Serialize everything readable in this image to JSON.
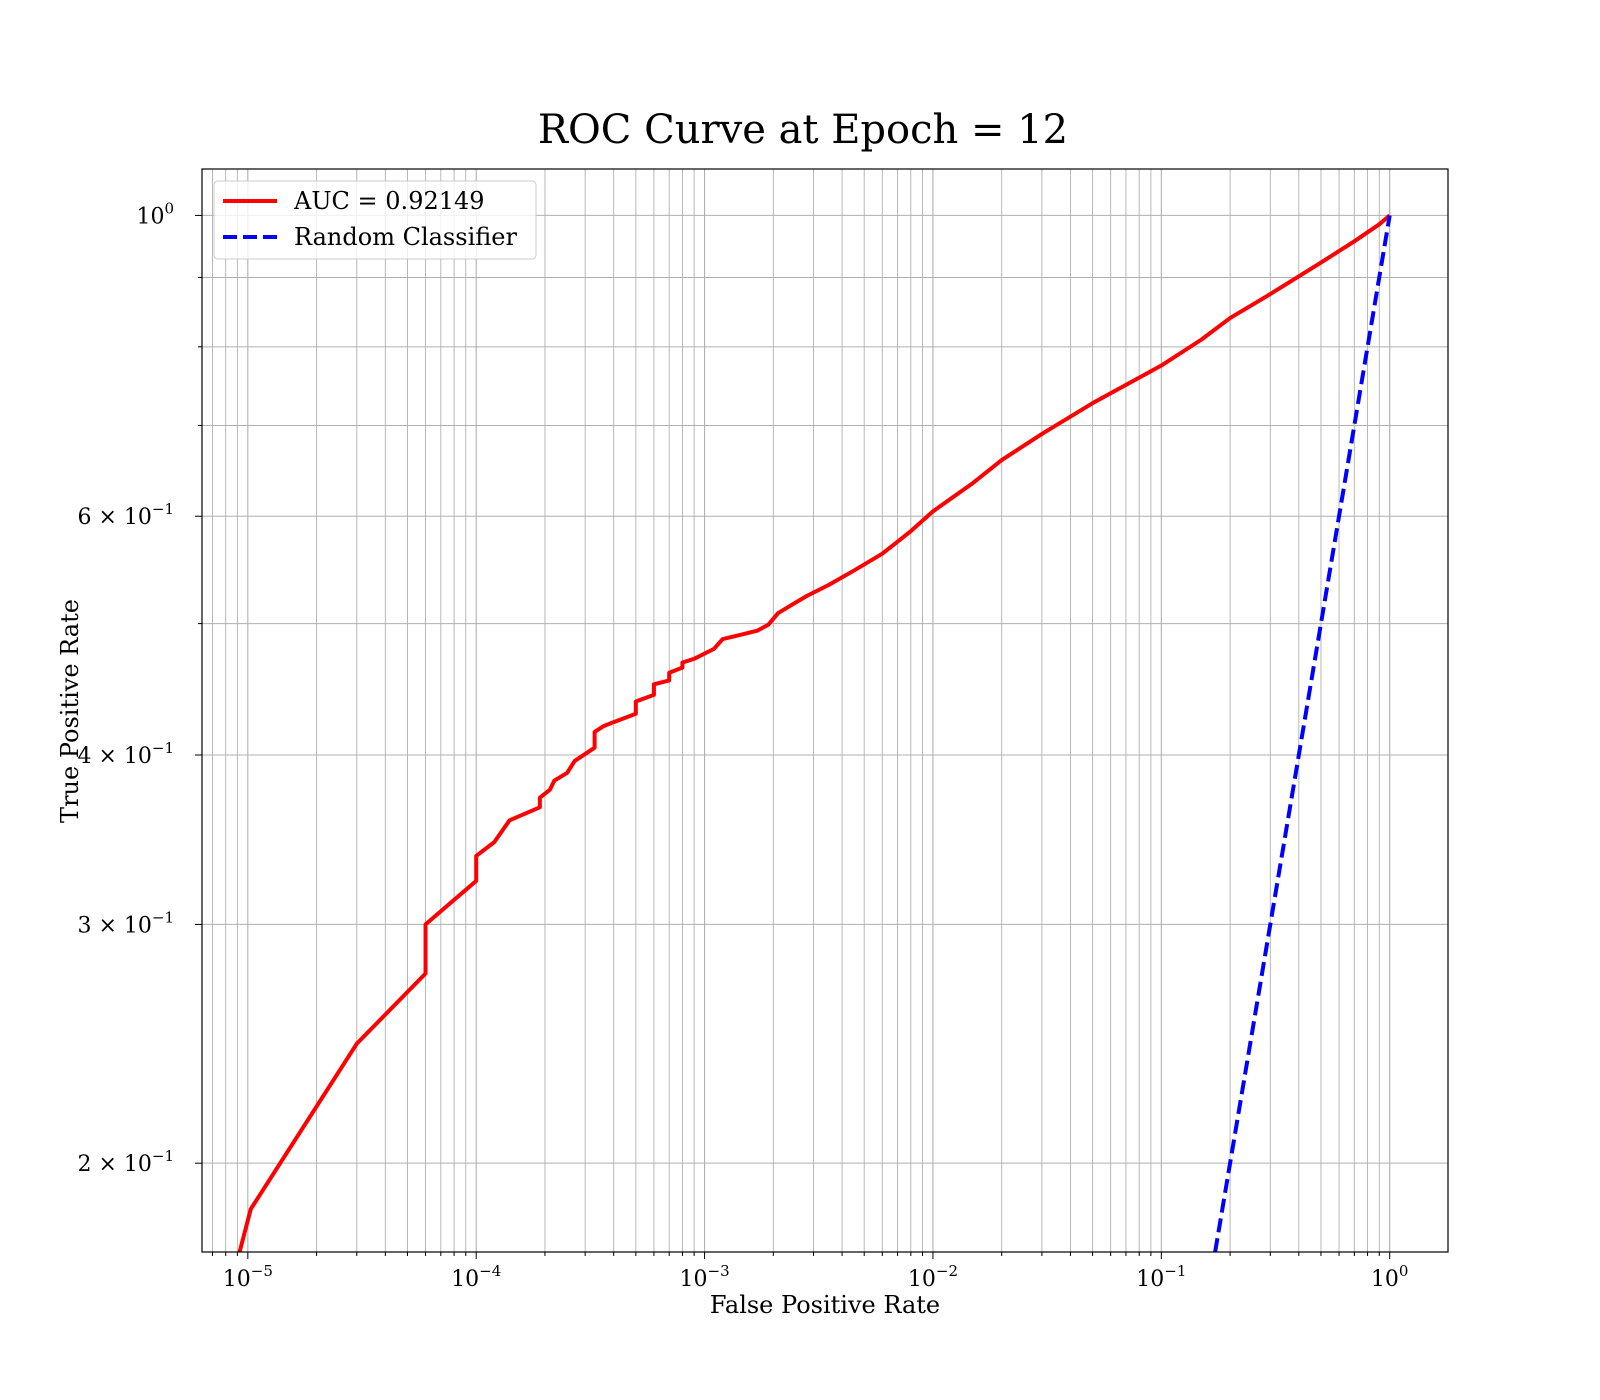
{
  "chart_data": {
    "type": "line",
    "title": "ROC Curve at Epoch = 12",
    "xlabel": "False Positive Rate",
    "ylabel": "True Positive Rate",
    "xscale": "log",
    "yscale": "log",
    "xlim": [
      6.3e-06,
      1.8
    ],
    "ylim": [
      0.172,
      1.082
    ],
    "grid": true,
    "grid_minor": true,
    "legend_position": "top-left",
    "x_ticks": [
      {
        "value": 1e-05,
        "base": "10",
        "exp": "−5"
      },
      {
        "value": 0.0001,
        "base": "10",
        "exp": "−4"
      },
      {
        "value": 0.001,
        "base": "10",
        "exp": "−3"
      },
      {
        "value": 0.01,
        "base": "10",
        "exp": "−2"
      },
      {
        "value": 0.1,
        "base": "10",
        "exp": "−1"
      },
      {
        "value": 1,
        "base": "10",
        "exp": "0"
      }
    ],
    "y_ticks": [
      {
        "value": 0.2,
        "base": "2 × 10",
        "exp": "−1"
      },
      {
        "value": 0.3,
        "base": "3 × 10",
        "exp": "−1"
      },
      {
        "value": 0.4,
        "base": "4 × 10",
        "exp": "−1"
      },
      {
        "value": 0.6,
        "base": "6 × 10",
        "exp": "−1"
      },
      {
        "value": 1,
        "base": "10",
        "exp": "0"
      }
    ],
    "series": [
      {
        "name": "AUC = 0.92149",
        "color": "#ff0000",
        "style": "solid",
        "x": [
          9.2e-06,
          1.03e-05,
          3e-05,
          6e-05,
          6e-05,
          0.0001,
          0.0001,
          0.00012,
          0.00014,
          0.00019,
          0.00019,
          0.00021,
          0.00022,
          0.00025,
          0.00027,
          0.00033,
          0.00033,
          0.00036,
          0.0004,
          0.0005,
          0.0005,
          0.0006,
          0.0006,
          0.0007,
          0.0007,
          0.0008,
          0.0008,
          0.0009,
          0.0011,
          0.0012,
          0.0014,
          0.0017,
          0.0019,
          0.0021,
          0.0024,
          0.0028,
          0.0035,
          0.0045,
          0.006,
          0.008,
          0.01,
          0.015,
          0.02,
          0.03,
          0.05,
          0.1,
          0.15,
          0.2,
          0.3,
          0.5,
          0.7,
          0.9,
          1.0
        ],
        "y": [
          0.172,
          0.185,
          0.245,
          0.276,
          0.3,
          0.323,
          0.337,
          0.345,
          0.358,
          0.366,
          0.372,
          0.377,
          0.383,
          0.388,
          0.396,
          0.405,
          0.416,
          0.42,
          0.423,
          0.429,
          0.438,
          0.443,
          0.451,
          0.454,
          0.46,
          0.464,
          0.468,
          0.471,
          0.479,
          0.487,
          0.49,
          0.494,
          0.499,
          0.509,
          0.516,
          0.524,
          0.534,
          0.547,
          0.563,
          0.585,
          0.605,
          0.635,
          0.66,
          0.69,
          0.727,
          0.775,
          0.81,
          0.84,
          0.875,
          0.923,
          0.957,
          0.985,
          1.0
        ]
      },
      {
        "name": "Random Classifier",
        "color": "#0000ff",
        "style": "dashed",
        "x": [
          0.172,
          1.0
        ],
        "y": [
          0.172,
          1.0
        ]
      }
    ]
  }
}
